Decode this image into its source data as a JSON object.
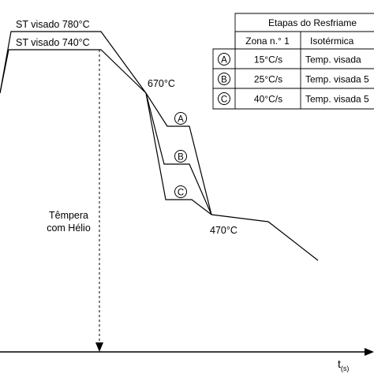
{
  "labels": {
    "st_780": "ST visado 780°C",
    "st_740": "ST visado 740°C",
    "t_670": "670°C",
    "t_470": "470°C",
    "tempera_1": "Têmpera",
    "tempera_2": "com Hélio",
    "x_axis_main": "t",
    "x_axis_sub": "(s)"
  },
  "paths": [
    {
      "letter": "A"
    },
    {
      "letter": "B"
    },
    {
      "letter": "C"
    }
  ],
  "table": {
    "title": "Etapas do Resfriame",
    "columns": [
      "Zona n.° 1",
      "Isotérmica"
    ],
    "rows": [
      {
        "letter": "A",
        "zone1": "15°C/s",
        "isothermal": "Temp. visada"
      },
      {
        "letter": "B",
        "zone1": "25°C/s",
        "isothermal": "Temp. visada 5"
      },
      {
        "letter": "C",
        "zone1": "40°C/s",
        "isothermal": "Temp. visada 5"
      }
    ]
  }
}
